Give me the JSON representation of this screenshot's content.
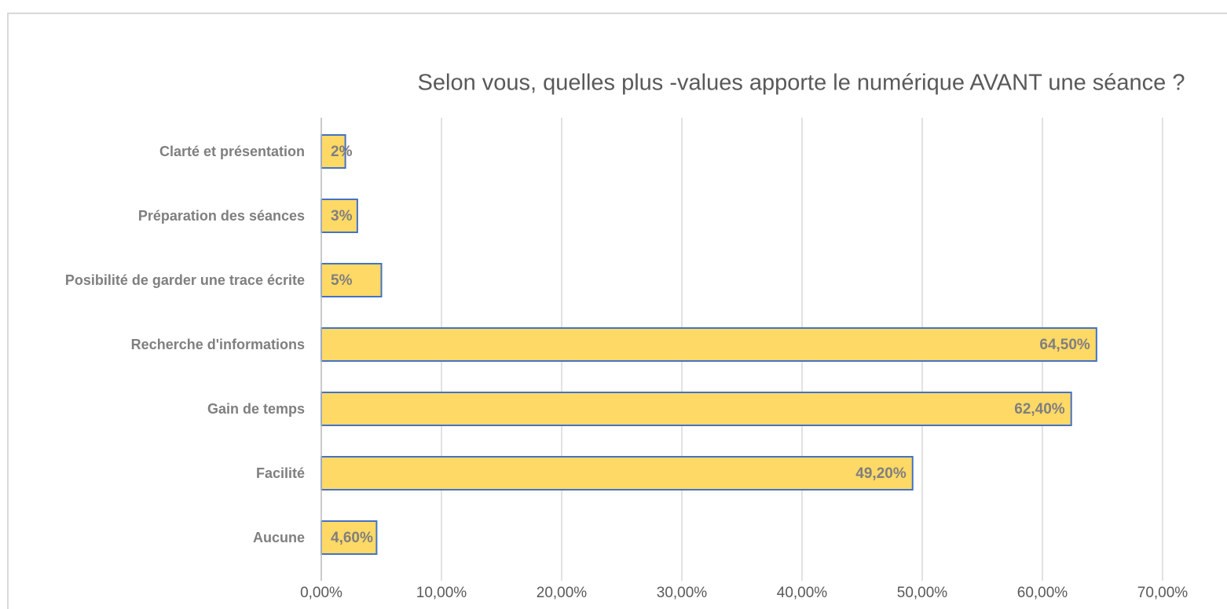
{
  "chart_data": {
    "type": "hbar",
    "title": "Selon vous, quelles plus -values apporte le numérique AVANT une séance ?",
    "categories": [
      "Clarté et présentation",
      "Préparation des séances",
      "Posibilité de garder une trace écrite",
      "Recherche d'informations",
      "Gain de temps",
      "Facilité",
      "Aucune"
    ],
    "values": [
      2,
      3,
      5,
      64.5,
      62.4,
      49.2,
      4.6
    ],
    "value_labels": [
      "2%",
      "3%",
      "5%",
      "64,50%",
      "62,40%",
      "49,20%",
      "4,60%"
    ],
    "color": "#ffd966",
    "edge_color": "#4472c4",
    "xlim": [
      0,
      70
    ],
    "xticks": [
      {
        "value": 0,
        "label": "0,00%"
      },
      {
        "value": 10,
        "label": "10,00%"
      },
      {
        "value": 20,
        "label": "20,00%"
      },
      {
        "value": 30,
        "label": "30,00%"
      },
      {
        "value": 40,
        "label": "40,00%"
      },
      {
        "value": 50,
        "label": "50,00%"
      },
      {
        "value": 60,
        "label": "60,00%"
      },
      {
        "value": 70,
        "label": "70,00%"
      }
    ],
    "grid": true
  }
}
